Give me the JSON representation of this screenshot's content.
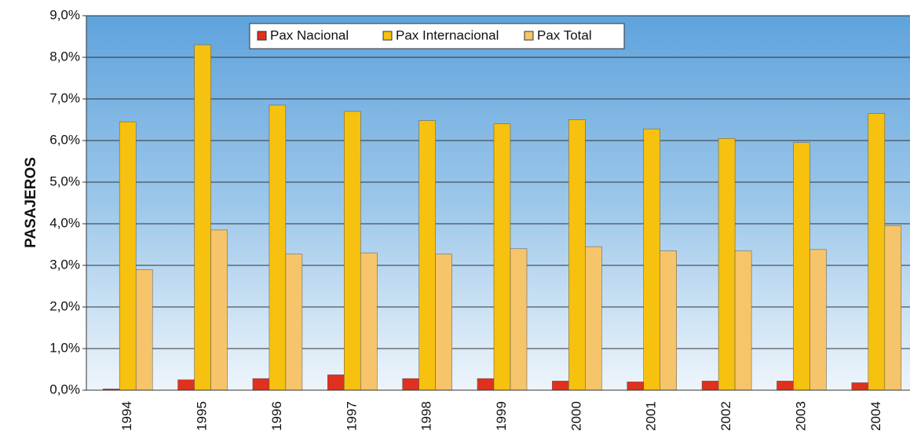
{
  "chart_data": {
    "type": "bar",
    "y_label": "PASAJEROS",
    "categories": [
      "1994",
      "1995",
      "1996",
      "1997",
      "1998",
      "1999",
      "2000",
      "2001",
      "2002",
      "2003",
      "2004"
    ],
    "series": [
      {
        "name": "Pax Nacional",
        "color": "#e0301e",
        "values": [
          0.03,
          0.25,
          0.28,
          0.37,
          0.28,
          0.28,
          0.22,
          0.2,
          0.22,
          0.22,
          0.18
        ]
      },
      {
        "name": "Pax Internacional",
        "color": "#f6c10f",
        "values": [
          6.45,
          8.3,
          6.85,
          6.7,
          6.48,
          6.4,
          6.5,
          6.28,
          6.05,
          5.95,
          6.65
        ]
      },
      {
        "name": "Pax Total",
        "color": "#f6c46a",
        "values": [
          2.9,
          3.85,
          3.27,
          3.3,
          3.27,
          3.4,
          3.45,
          3.35,
          3.35,
          3.38,
          3.95
        ]
      }
    ],
    "ylim": [
      0,
      9
    ],
    "yticks": [
      {
        "value": 0,
        "label": "0,0%"
      },
      {
        "value": 1,
        "label": "1,0%"
      },
      {
        "value": 2,
        "label": "2,0%"
      },
      {
        "value": 3,
        "label": "3,0%"
      },
      {
        "value": 4,
        "label": "4,0%"
      },
      {
        "value": 5,
        "label": "5,0%"
      },
      {
        "value": 6,
        "label": "6,0%"
      },
      {
        "value": 7,
        "label": "7,0%"
      },
      {
        "value": 8,
        "label": "8,0%"
      },
      {
        "value": 9,
        "label": "9,0%"
      }
    ],
    "grid": true,
    "legend": "top"
  }
}
